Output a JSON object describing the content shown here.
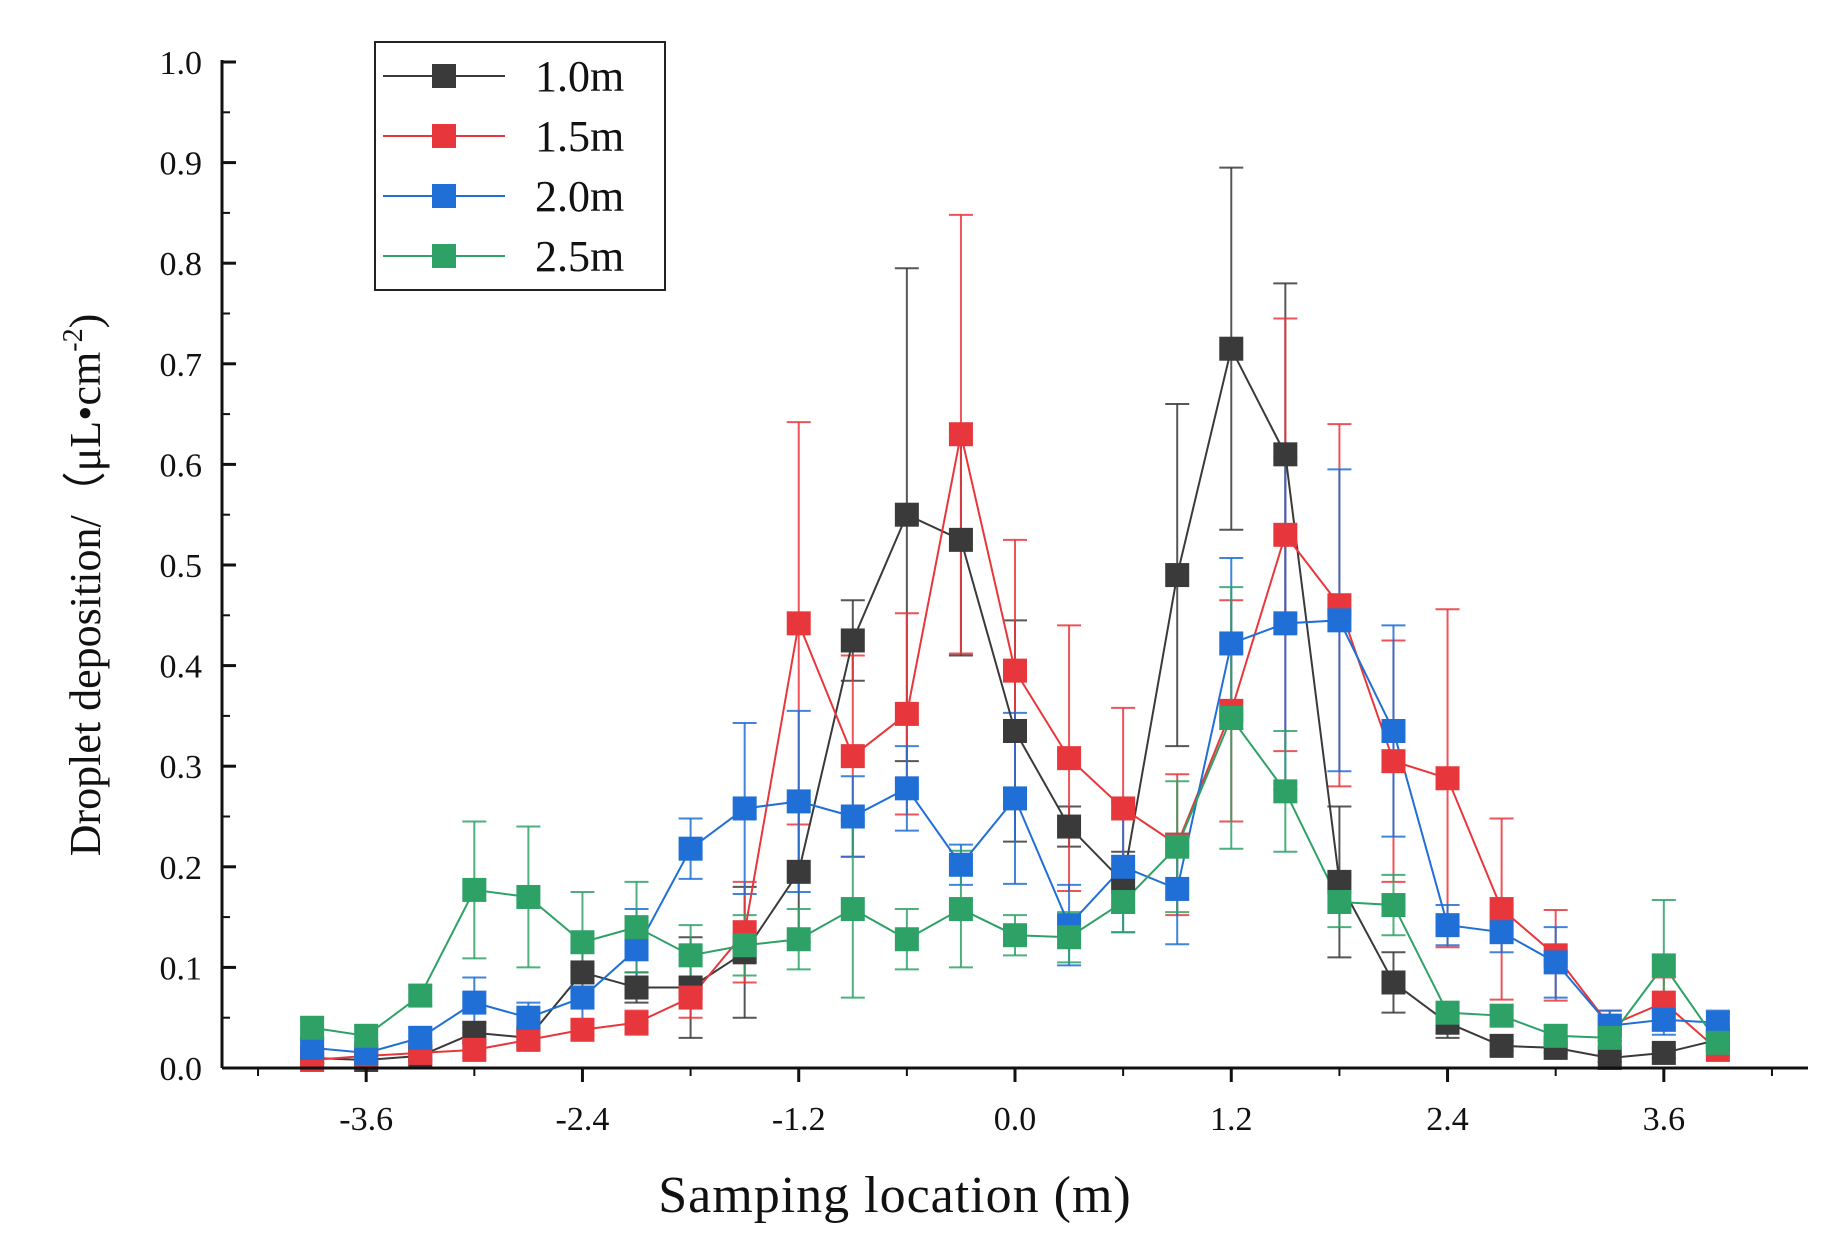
{
  "chart_data": {
    "type": "line",
    "title": "",
    "xlabel": "Samping location (m)",
    "ylabel": "Droplet deposition/（μL•cm",
    "ylabel_superscript": "-2",
    "ylabel_close": ")",
    "xlim": [
      -4.4,
      4.4
    ],
    "ylim": [
      0.0,
      1.0
    ],
    "xticks": [
      -3.6,
      -2.4,
      -1.2,
      0.0,
      1.2,
      2.4,
      3.6
    ],
    "xtick_labels": [
      "-3.6",
      "-2.4",
      "-1.2",
      "0.0",
      "1.2",
      "2.4",
      "3.6"
    ],
    "yticks": [
      0.0,
      0.1,
      0.2,
      0.3,
      0.4,
      0.5,
      0.6,
      0.7,
      0.8,
      0.9,
      1.0
    ],
    "ytick_labels": [
      "0.0",
      "0.1",
      "0.2",
      "0.3",
      "0.4",
      "0.5",
      "0.6",
      "0.7",
      "0.8",
      "0.9",
      "1.0"
    ],
    "legend_position": "top-left",
    "x": [
      -3.9,
      -3.6,
      -3.3,
      -3.0,
      -2.7,
      -2.4,
      -2.1,
      -1.8,
      -1.5,
      -1.2,
      -0.9,
      -0.6,
      -0.3,
      0.0,
      0.3,
      0.6,
      0.9,
      1.2,
      1.5,
      1.8,
      2.1,
      2.4,
      2.7,
      3.0,
      3.3,
      3.6,
      3.9
    ],
    "series": [
      {
        "name": "1.0m",
        "color": "#3a3a3a",
        "values": [
          0.01,
          0.008,
          0.012,
          0.035,
          0.03,
          0.095,
          0.08,
          0.08,
          0.115,
          0.195,
          0.425,
          0.55,
          0.525,
          0.335,
          0.24,
          0.185,
          0.49,
          0.715,
          0.61,
          0.185,
          0.085,
          0.045,
          0.022,
          0.02,
          0.01,
          0.015,
          0.028
        ],
        "errors": [
          0.005,
          0.004,
          0.005,
          0.01,
          0.008,
          0.02,
          0.015,
          0.05,
          0.065,
          0.07,
          0.04,
          0.245,
          0.115,
          0.11,
          0.02,
          0.03,
          0.17,
          0.18,
          0.17,
          0.075,
          0.03,
          0.015,
          0.005,
          0.005,
          0.004,
          0.005,
          0.008
        ]
      },
      {
        "name": "1.5m",
        "color": "#e8373c",
        "values": [
          0.008,
          0.012,
          0.015,
          0.018,
          0.028,
          0.038,
          0.045,
          0.07,
          0.135,
          0.442,
          0.31,
          0.352,
          0.63,
          0.395,
          0.308,
          0.258,
          0.222,
          0.355,
          0.53,
          0.46,
          0.305,
          0.288,
          0.158,
          0.112,
          0.042,
          0.065,
          0.018
        ],
        "errors": [
          0.004,
          0.005,
          0.006,
          0.008,
          0.01,
          0.01,
          0.012,
          0.02,
          0.05,
          0.2,
          0.1,
          0.1,
          0.218,
          0.13,
          0.132,
          0.1,
          0.07,
          0.11,
          0.215,
          0.18,
          0.12,
          0.168,
          0.09,
          0.045,
          0.015,
          0.025,
          0.006
        ]
      },
      {
        "name": "2.0m",
        "color": "#1f6fd6",
        "values": [
          0.02,
          0.015,
          0.03,
          0.065,
          0.05,
          0.07,
          0.118,
          0.218,
          0.258,
          0.265,
          0.25,
          0.278,
          0.202,
          0.268,
          0.142,
          0.2,
          0.178,
          0.422,
          0.442,
          0.445,
          0.335,
          0.142,
          0.135,
          0.105,
          0.042,
          0.048,
          0.045
        ],
        "errors": [
          0.008,
          0.006,
          0.01,
          0.025,
          0.015,
          0.03,
          0.04,
          0.03,
          0.085,
          0.09,
          0.04,
          0.042,
          0.02,
          0.085,
          0.04,
          0.065,
          0.055,
          0.085,
          0.165,
          0.15,
          0.105,
          0.02,
          0.02,
          0.035,
          0.015,
          0.015,
          0.012
        ]
      },
      {
        "name": "2.5m",
        "color": "#2ea266",
        "values": [
          0.04,
          0.032,
          0.072,
          0.177,
          0.17,
          0.125,
          0.14,
          0.112,
          0.122,
          0.128,
          0.158,
          0.128,
          0.158,
          0.132,
          0.13,
          0.165,
          0.22,
          0.348,
          0.275,
          0.165,
          0.162,
          0.055,
          0.052,
          0.032,
          0.03,
          0.102,
          0.025
        ],
        "errors": [
          0.01,
          0.01,
          0.01,
          0.068,
          0.07,
          0.05,
          0.045,
          0.03,
          0.03,
          0.03,
          0.088,
          0.03,
          0.058,
          0.02,
          0.025,
          0.03,
          0.065,
          0.13,
          0.06,
          0.025,
          0.03,
          0.01,
          0.01,
          0.01,
          0.008,
          0.065,
          0.008
        ]
      }
    ]
  }
}
